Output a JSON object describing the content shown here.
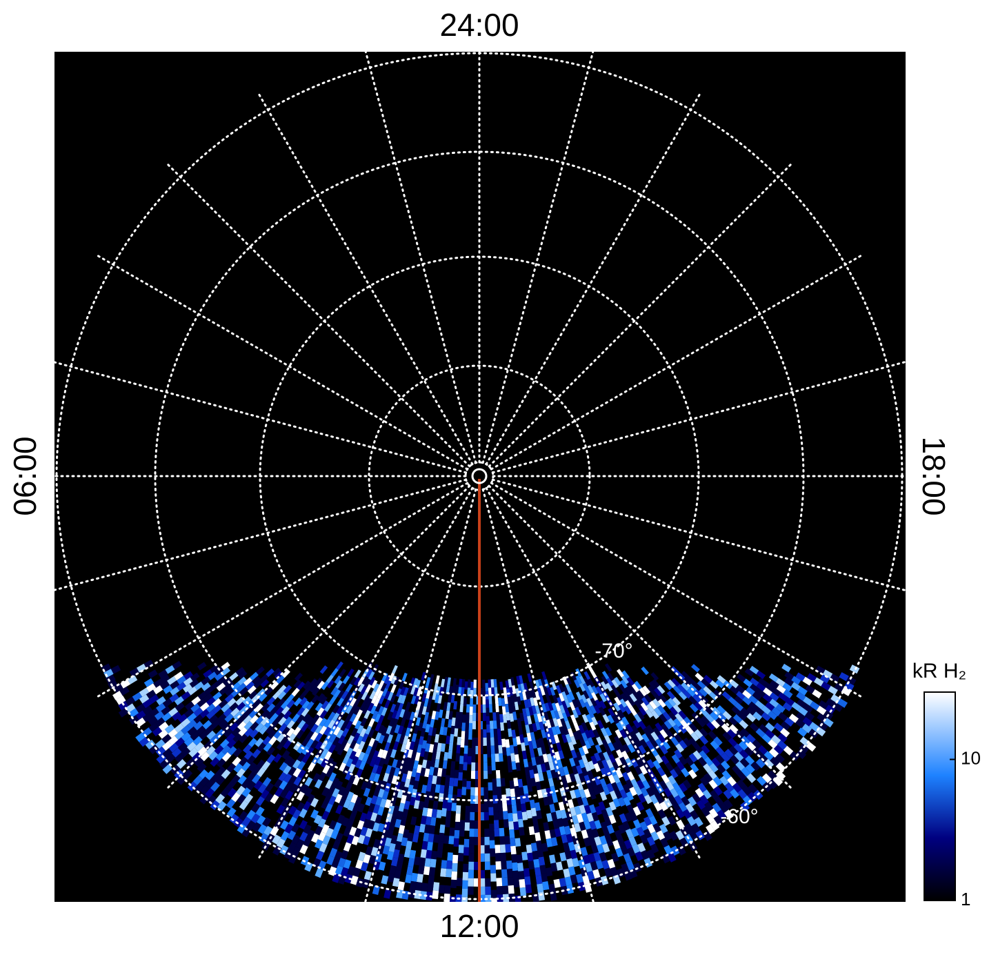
{
  "labels": {
    "top": "24:00",
    "bottom": "12:00",
    "left": "06:00",
    "right": "18:00"
  },
  "latitude_labels": [
    "-70°",
    "-60°"
  ],
  "colorbar": {
    "title": "kR H₂",
    "scale": "log",
    "range": [
      1,
      30
    ],
    "ticks": [
      1,
      10
    ]
  }
}
